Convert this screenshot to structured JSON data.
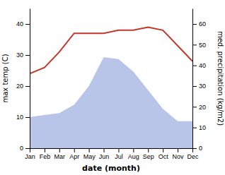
{
  "chart_data": {
    "type": "line",
    "xlabel": "date (month)",
    "ylabel": "max temp (C)",
    "y2label": "med. precipitation (kg/m2)",
    "categories": [
      "Jan",
      "Feb",
      "Mar",
      "Apr",
      "May",
      "Jun",
      "Jul",
      "Aug",
      "Sep",
      "Oct",
      "Nov",
      "Dec"
    ],
    "series": [
      {
        "type": "area",
        "axis": "y2",
        "color": "#b8c4e8",
        "values": [
          15,
          16,
          17,
          21,
          30,
          44,
          43,
          37,
          28,
          19,
          13,
          13
        ]
      },
      {
        "type": "line",
        "color": "#c0392b",
        "values": [
          24,
          26,
          31,
          37,
          37,
          37,
          38,
          38,
          39,
          38,
          33,
          28
        ]
      }
    ],
    "ylim": [
      0,
      45
    ],
    "yticks": [
      0,
      10,
      20,
      30,
      40
    ],
    "y2lim": [
      0,
      67.5
    ],
    "y2ticks": [
      0,
      10,
      20,
      30,
      40,
      50,
      60
    ]
  }
}
